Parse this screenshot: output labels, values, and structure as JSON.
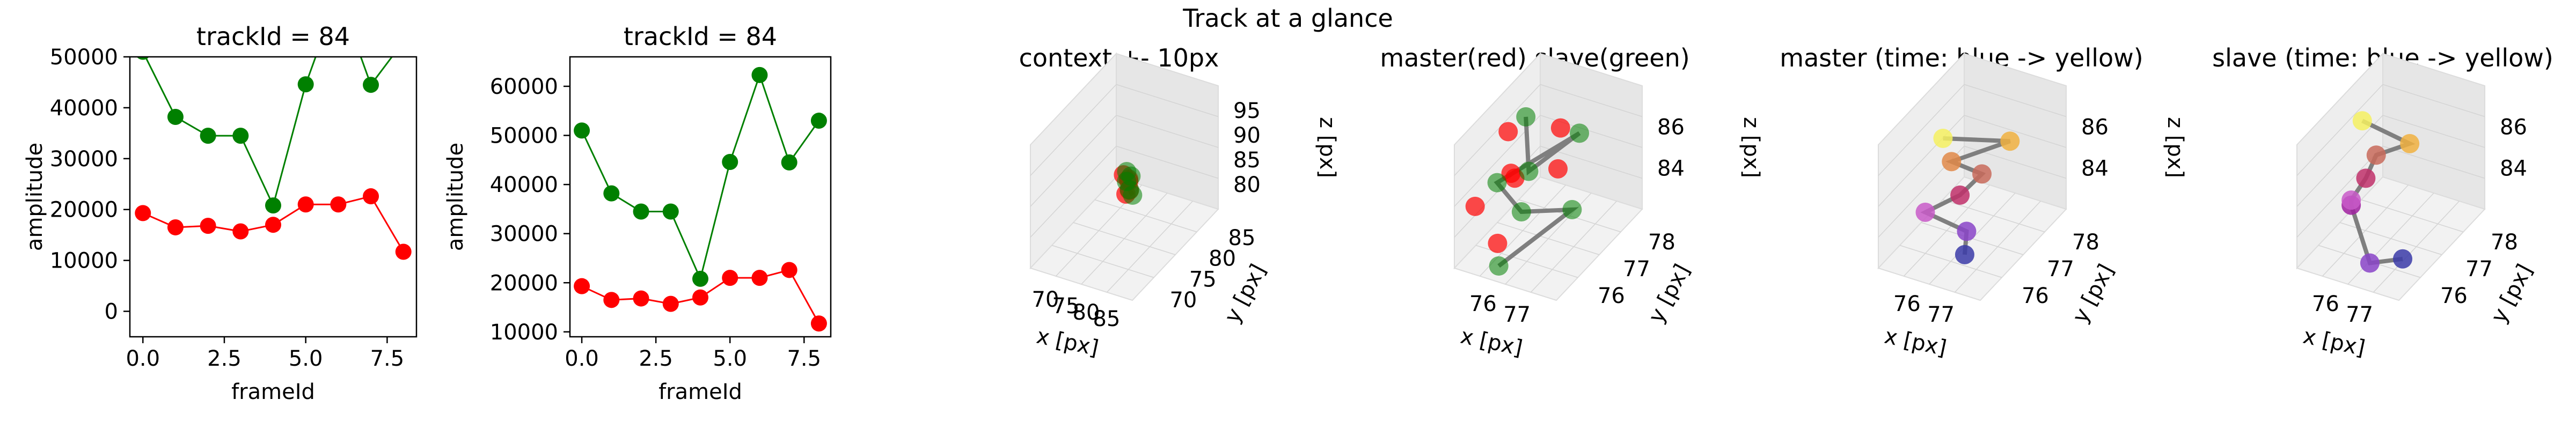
{
  "figure": {
    "suptitle": "Track at a glance"
  },
  "chart_data": [
    {
      "type": "line",
      "title": "trackId = 84",
      "xlabel": "frameId",
      "ylabel": "amplitude",
      "xlim": [
        -0.4,
        8.4
      ],
      "ylim": [
        -5000,
        50000
      ],
      "xticks": [
        0.0,
        2.5,
        5.0,
        7.5
      ],
      "xtick_labels": [
        "0.0",
        "2.5",
        "5.0",
        "7.5"
      ],
      "yticks": [
        0,
        10000,
        20000,
        30000,
        40000,
        50000
      ],
      "ytick_labels": [
        "0",
        "10000",
        "20000",
        "30000",
        "40000",
        "50000"
      ],
      "grid": false,
      "x": [
        0,
        1,
        2,
        3,
        4,
        5,
        6,
        7,
        8
      ],
      "series": [
        {
          "color": "#008000",
          "values": [
            51000,
            38200,
            34500,
            34500,
            20800,
            44600,
            62300,
            44500,
            53000
          ]
        },
        {
          "color": "#ff0000",
          "values": [
            19300,
            16500,
            16800,
            15700,
            17000,
            21000,
            21000,
            22600,
            11700
          ]
        }
      ]
    },
    {
      "type": "line",
      "title": "trackId = 84",
      "xlabel": "frameId",
      "ylabel": "amplitude",
      "xlim": [
        -0.4,
        8.4
      ],
      "ylim": [
        9000,
        66000
      ],
      "xticks": [
        0.0,
        2.5,
        5.0,
        7.5
      ],
      "xtick_labels": [
        "0.0",
        "2.5",
        "5.0",
        "7.5"
      ],
      "yticks": [
        10000,
        20000,
        30000,
        40000,
        50000,
        60000
      ],
      "ytick_labels": [
        "10000",
        "20000",
        "30000",
        "40000",
        "50000",
        "60000"
      ],
      "grid": false,
      "x": [
        0,
        1,
        2,
        3,
        4,
        5,
        6,
        7,
        8
      ],
      "series": [
        {
          "color": "#008000",
          "values": [
            51000,
            38200,
            34500,
            34500,
            20800,
            44600,
            62300,
            44500,
            53000
          ]
        },
        {
          "color": "#ff0000",
          "values": [
            19300,
            16500,
            16800,
            15700,
            17000,
            21000,
            21000,
            22600,
            11700
          ]
        }
      ]
    },
    {
      "type": "scatter",
      "projection": "3d",
      "title": "context +- 10px",
      "xlabel": "x [px]",
      "ylabel": "y [px]",
      "zlabel": "z [px]",
      "xlim": [
        66,
        86
      ],
      "ylim": [
        66,
        86
      ],
      "zlim": [
        76,
        96
      ],
      "xticks": [
        "70",
        "75",
        "80",
        "85"
      ],
      "yticks": [
        "70",
        "75",
        "80",
        "85"
      ],
      "zticks": [
        "80",
        "85",
        "90",
        "95"
      ],
      "grid": true,
      "points": {
        "red": [
          [
            76.0,
            75.8,
            86.5
          ],
          [
            76.6,
            76.3,
            85.6
          ],
          [
            76.2,
            76.8,
            84.8
          ],
          [
            76.9,
            76.1,
            84.0
          ],
          [
            76.4,
            75.9,
            83.4
          ]
        ],
        "green": [
          [
            76.3,
            76.2,
            86.8
          ],
          [
            76.8,
            76.6,
            85.9
          ],
          [
            76.1,
            76.4,
            85.0
          ],
          [
            77.0,
            76.0,
            84.2
          ],
          [
            77.2,
            76.5,
            83.0
          ]
        ]
      },
      "track_line": [
        [
          76.3,
          76.2,
          86.8
        ],
        [
          76.8,
          76.6,
          85.9
        ],
        [
          76.1,
          76.4,
          85.0
        ],
        [
          77.0,
          76.0,
          84.2
        ],
        [
          77.2,
          76.5,
          83.0
        ]
      ]
    },
    {
      "type": "scatter",
      "projection": "3d",
      "title": "master(red) slave(green)",
      "zlabel": "z [px]",
      "xlabel": "x [px]",
      "ylabel": "y [px]",
      "xlim": [
        75.4,
        77.8
      ],
      "ylim": [
        75.6,
        78.4
      ],
      "zlim": [
        82.6,
        87.4
      ],
      "xticks": [
        "76",
        "77"
      ],
      "yticks": [
        "76",
        "77",
        "78"
      ],
      "zticks": [
        "84",
        "86"
      ],
      "grid": true,
      "points": {
        "red": [
          [
            75.8,
            76.8,
            86.6
          ],
          [
            76.3,
            76.2,
            86.0
          ],
          [
            76.6,
            77.4,
            86.4
          ],
          [
            75.6,
            76.0,
            84.6
          ],
          [
            76.1,
            76.6,
            85.2
          ],
          [
            76.9,
            76.9,
            85.6
          ],
          [
            76.2,
            75.9,
            83.6
          ]
        ],
        "green": [
          [
            76.0,
            77.1,
            86.9
          ],
          [
            76.5,
            76.5,
            85.8
          ],
          [
            76.9,
            77.6,
            86.1
          ],
          [
            75.9,
            76.3,
            85.3
          ],
          [
            76.4,
            76.4,
            84.3
          ],
          [
            76.8,
            77.5,
            83.2
          ],
          [
            76.3,
            75.8,
            82.9
          ]
        ]
      },
      "track_line": [
        [
          76.0,
          77.1,
          86.9
        ],
        [
          76.5,
          76.5,
          85.8
        ],
        [
          76.9,
          77.6,
          86.1
        ],
        [
          75.9,
          76.3,
          85.3
        ],
        [
          76.4,
          76.4,
          84.3
        ],
        [
          76.8,
          77.5,
          83.2
        ],
        [
          76.3,
          75.8,
          82.9
        ]
      ]
    },
    {
      "type": "scatter",
      "projection": "3d",
      "title": "master (time: blue -> yellow)",
      "zlabel": "z [px]",
      "xlabel": "x [px]",
      "ylabel": "y [px]",
      "xlim": [
        75.4,
        77.8
      ],
      "ylim": [
        75.6,
        78.4
      ],
      "zlim": [
        82.6,
        87.4
      ],
      "xticks": [
        "76",
        "77"
      ],
      "yticks": [
        "76",
        "77",
        "78"
      ],
      "zticks": [
        "84",
        "86"
      ],
      "grid": true,
      "colormap": [
        "#3b3ba8",
        "#8a44c8",
        "#c85ac8",
        "#c0306a",
        "#c86a5a",
        "#e08848",
        "#f0b040",
        "#f4f060"
      ],
      "points_in_time_order": [
        [
          77.0,
          76.2,
          83.2
        ],
        [
          76.9,
          76.4,
          83.8
        ],
        [
          76.0,
          76.3,
          84.2
        ],
        [
          76.6,
          76.6,
          84.8
        ],
        [
          76.9,
          76.9,
          85.4
        ],
        [
          76.4,
          76.6,
          86.0
        ],
        [
          77.2,
          77.4,
          86.2
        ],
        [
          76.2,
          76.6,
          86.8
        ]
      ]
    },
    {
      "type": "scatter",
      "projection": "3d",
      "title": "slave (time: blue -> yellow)",
      "zlabel": "z [px]",
      "xlabel": "x [px]",
      "ylabel": "y [px]",
      "xlim": [
        75.4,
        77.8
      ],
      "ylim": [
        75.6,
        78.4
      ],
      "zlim": [
        82.6,
        87.4
      ],
      "xticks": [
        "76",
        "77"
      ],
      "yticks": [
        "76",
        "77",
        "78"
      ],
      "zticks": [
        "84",
        "86"
      ],
      "grid": true,
      "colormap": [
        "#3b3ba8",
        "#8a44c8",
        "#a020a0",
        "#c85ac8",
        "#c0306a",
        "#c86a5a",
        "#f0b040",
        "#f4f060"
      ],
      "points_in_time_order": [
        [
          77.6,
          76.0,
          83.6
        ],
        [
          76.9,
          75.9,
          83.2
        ],
        [
          76.1,
          76.4,
          84.4
        ],
        [
          76.1,
          76.4,
          84.6
        ],
        [
          76.3,
          76.6,
          85.3
        ],
        [
          76.4,
          76.8,
          86.0
        ],
        [
          76.9,
          77.2,
          86.2
        ],
        [
          76.0,
          76.9,
          87.0
        ]
      ]
    }
  ]
}
